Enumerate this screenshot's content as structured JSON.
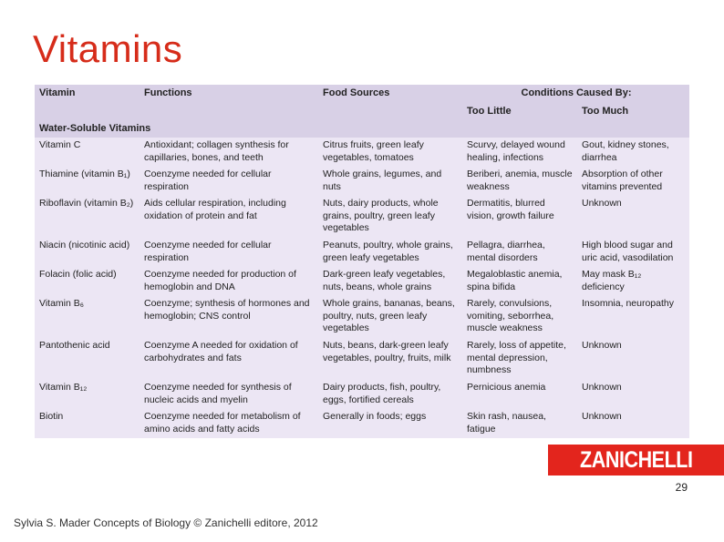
{
  "slide": {
    "title": "Vitamins",
    "page_number": "29",
    "footer": "Sylvia S. Mader Concepts of Biology © Zanichelli editore, 2012",
    "logo_text": "ZANICHELLI",
    "colors": {
      "title": "#d62c1a",
      "header_bg": "#d8d0e6",
      "body_bg": "#ece6f4",
      "logo_bg": "#e3251d"
    }
  },
  "table": {
    "headers": {
      "vitamin": "Vitamin",
      "functions": "Functions",
      "food_sources": "Food Sources",
      "conditions": "Conditions Caused By:",
      "too_little": "Too Little",
      "too_much": "Too Much",
      "section": "Water-Soluble Vitamins"
    },
    "rows": [
      {
        "vitamin": "Vitamin C",
        "functions": "Antioxidant; collagen synthesis for capillaries, bones, and teeth",
        "food": "Citrus fruits, green leafy vegetables, tomatoes",
        "too_little": "Scurvy, delayed wound healing, infections",
        "too_much": "Gout, kidney stones, diarrhea"
      },
      {
        "vitamin": "Thiamine (vitamin B₁)",
        "functions": "Coenzyme needed for cellular respiration",
        "food": "Whole grains, legumes, and nuts",
        "too_little": "Beriberi, anemia, muscle weakness",
        "too_much": "Absorption of other vitamins prevented"
      },
      {
        "vitamin": "Riboflavin (vitamin B₂)",
        "functions": "Aids cellular respiration, including oxidation of protein and fat",
        "food": "Nuts, dairy products, whole grains, poultry, green leafy vegetables",
        "too_little": "Dermatitis, blurred vision, growth failure",
        "too_much": "Unknown"
      },
      {
        "vitamin": "Niacin (nicotinic acid)",
        "functions": "Coenzyme needed for cellular respiration",
        "food": "Peanuts, poultry, whole grains, green leafy vegetables",
        "too_little": "Pellagra, diarrhea, mental disorders",
        "too_much": "High blood sugar and uric acid, vasodilation"
      },
      {
        "vitamin": "Folacin (folic acid)",
        "functions": "Coenzyme needed for production of hemoglobin and DNA",
        "food": "Dark-green leafy vegetables, nuts, beans, whole grains",
        "too_little": "Megaloblastic anemia, spina bifida",
        "too_much": "May mask B₁₂ deficiency"
      },
      {
        "vitamin": "Vitamin B₆",
        "functions": "Coenzyme; synthesis of hormones and hemoglobin; CNS control",
        "food": "Whole grains, bananas, beans, poultry, nuts, green leafy vegetables",
        "too_little": "Rarely, convulsions, vomiting, seborrhea, muscle weakness",
        "too_much": "Insomnia, neuropathy"
      },
      {
        "vitamin": "Pantothenic acid",
        "functions": "Coenzyme A needed for oxidation of carbohydrates and fats",
        "food": "Nuts, beans, dark-green leafy vegetables, poultry, fruits, milk",
        "too_little": "Rarely, loss of appetite, mental depression, numbness",
        "too_much": "Unknown"
      },
      {
        "vitamin": "Vitamin B₁₂",
        "functions": "Coenzyme needed for synthesis of nucleic acids and myelin",
        "food": "Dairy products, fish, poultry, eggs, fortified cereals",
        "too_little": "Pernicious anemia",
        "too_much": "Unknown"
      },
      {
        "vitamin": "Biotin",
        "functions": "Coenzyme needed for metabolism of amino acids and fatty acids",
        "food": "Generally in foods; eggs",
        "too_little": "Skin rash, nausea, fatigue",
        "too_much": "Unknown"
      }
    ]
  }
}
